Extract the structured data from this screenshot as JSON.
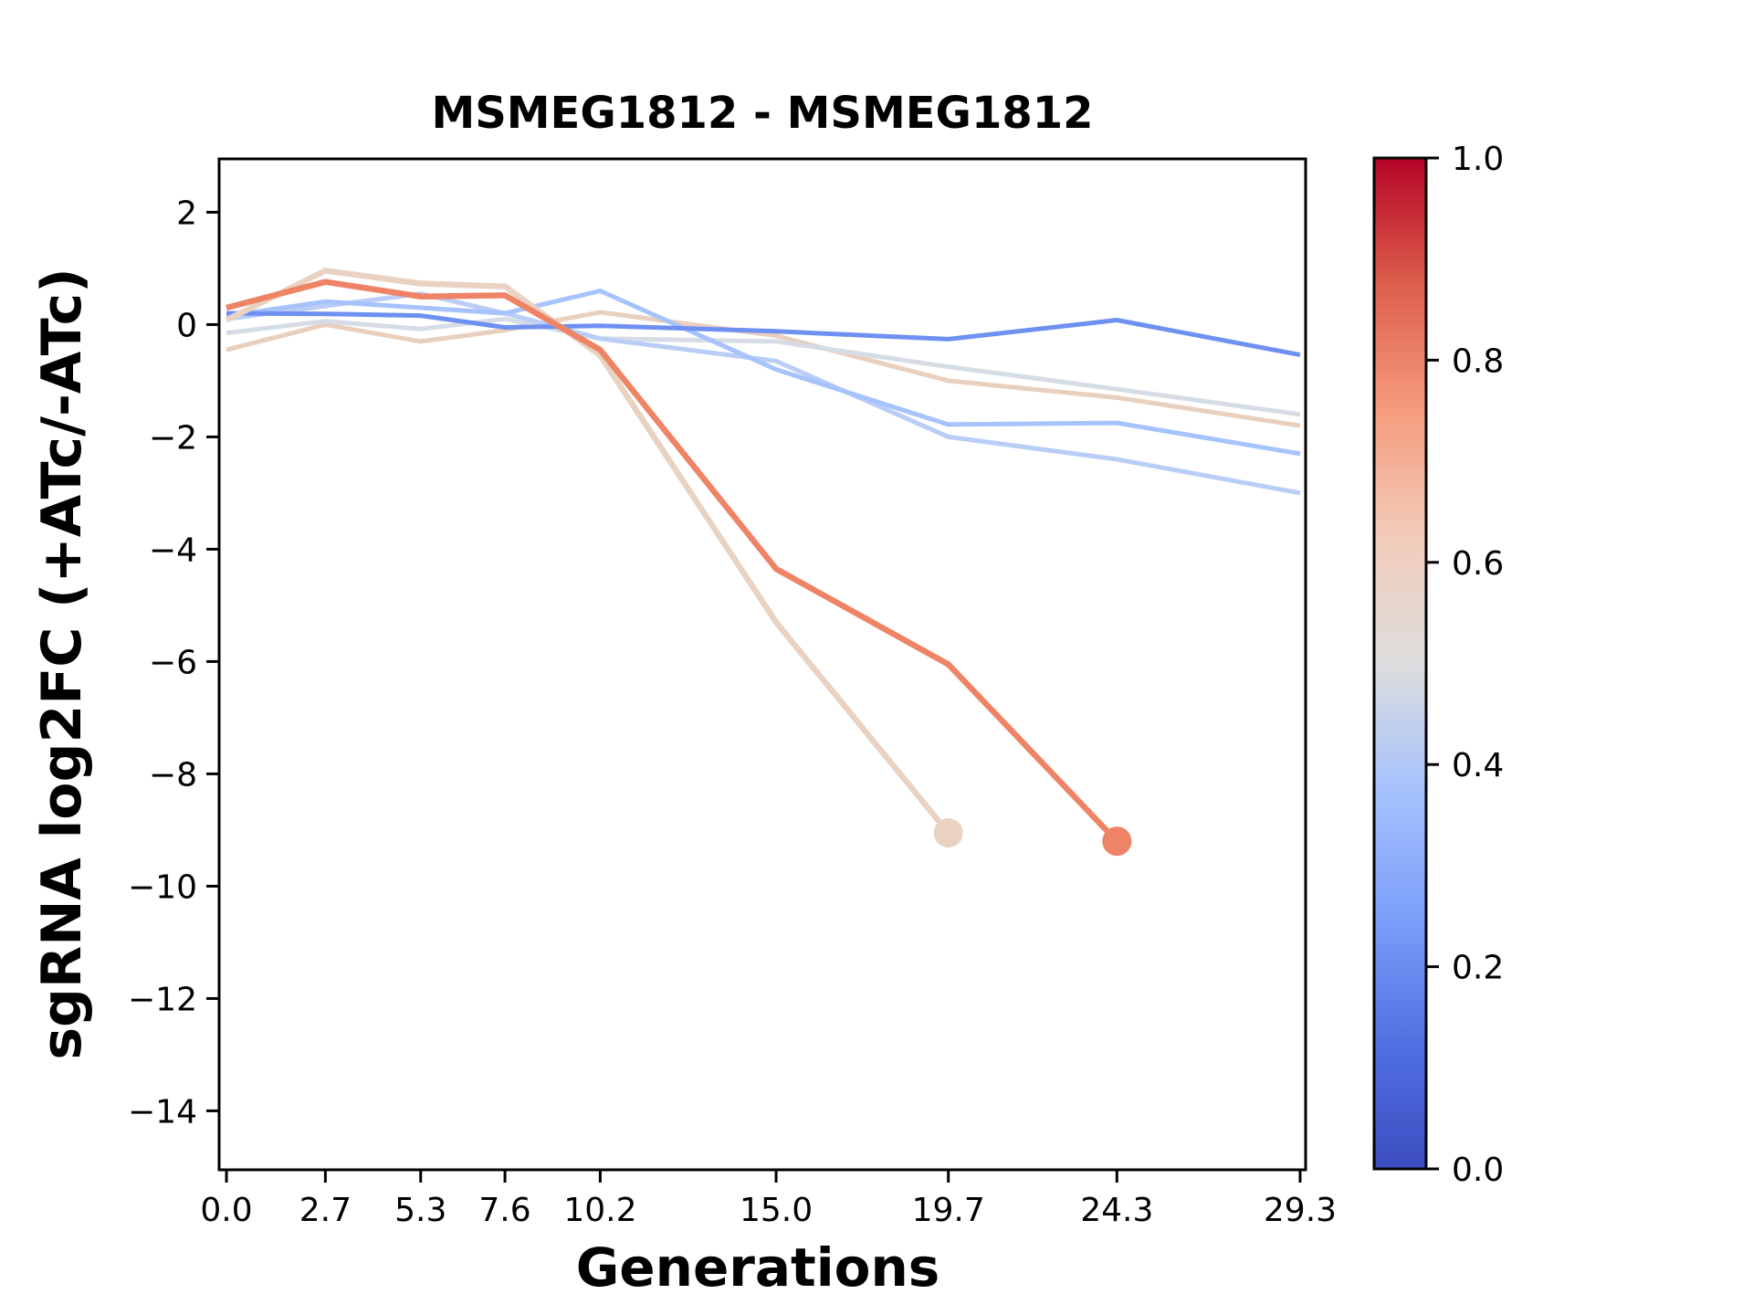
{
  "title": "MSMEG1812 - MSMEG1812",
  "axes": {
    "xlabel": "Generations",
    "ylabel": "sgRNA log2FC (+ATc/-ATc)"
  },
  "chart_data": {
    "type": "line",
    "title": "MSMEG1812 - MSMEG1812",
    "xlabel": "Generations",
    "ylabel": "sgRNA log2FC (+ATc/-ATc)",
    "x": [
      0.0,
      2.7,
      5.3,
      7.6,
      10.2,
      15.0,
      19.7,
      24.3,
      29.3
    ],
    "x_tick_labels": [
      "0.0",
      "2.7",
      "5.3",
      "7.6",
      "10.2",
      "15.0",
      "19.7",
      "24.3",
      "29.3"
    ],
    "y_tick_values": [
      2,
      0,
      -2,
      -4,
      -6,
      -8,
      -10,
      -12,
      -14
    ],
    "y_tick_labels": [
      "2",
      "0",
      "−2",
      "−4",
      "−6",
      "−8",
      "−10",
      "−12",
      "−14"
    ],
    "xlim": [
      -0.2,
      29.45
    ],
    "ylim": [
      -15.05,
      2.95
    ],
    "grid": false,
    "legend": false,
    "series": [
      {
        "id": "line-3",
        "color": "#e9cfbd",
        "color_value_est": 0.6,
        "values": [
          -0.45,
          0.0,
          -0.3,
          -0.1,
          0.22,
          -0.2,
          -1.0,
          -1.3,
          -1.8
        ],
        "end_dot": false
      },
      {
        "id": "line-4",
        "color": "#d6dce6",
        "color_value_est": 0.5,
        "values": [
          -0.15,
          0.06,
          -0.08,
          0.1,
          -0.25,
          -0.3,
          -0.75,
          -1.15,
          -1.6
        ],
        "end_dot": false
      },
      {
        "id": "line-7",
        "color": "#b9cdf6",
        "color_value_est": 0.44,
        "values": [
          0.1,
          0.33,
          0.55,
          0.2,
          -0.25,
          -0.65,
          -2.0,
          -2.4,
          -3.0
        ],
        "end_dot": false
      },
      {
        "id": "line-6",
        "color": "#a6c3fe",
        "color_value_est": 0.4,
        "values": [
          0.15,
          0.41,
          0.3,
          0.2,
          0.6,
          -0.8,
          -1.78,
          -1.75,
          -2.3
        ],
        "end_dot": false
      },
      {
        "id": "line-5",
        "color": "#6e90f1",
        "color_value_est": 0.25,
        "values": [
          0.2,
          0.19,
          0.16,
          -0.05,
          -0.02,
          -0.12,
          -0.26,
          0.08,
          -0.54
        ],
        "end_dot": false
      },
      {
        "id": "line-2",
        "color": "#e9d2c2",
        "color_value_est": 0.6,
        "values": [
          0.08,
          0.96,
          0.73,
          0.68,
          -0.55,
          -5.3,
          -9.05,
          null,
          null
        ],
        "end_dot": true
      },
      {
        "id": "line-1",
        "color": "#ee8365",
        "color_value_est": 0.8,
        "values": [
          0.3,
          0.76,
          0.5,
          0.52,
          -0.45,
          -4.35,
          -6.05,
          -9.2,
          null
        ],
        "end_dot": true
      }
    ],
    "colorbar": {
      "tick_values": [
        0.0,
        0.2,
        0.4,
        0.6,
        0.8,
        1.0
      ],
      "tick_labels": [
        "0.0",
        "0.2",
        "0.4",
        "0.6",
        "0.8",
        "1.0"
      ],
      "gradient_stops": [
        [
          0.0,
          "#3b4cc0"
        ],
        [
          0.125,
          "#5171e2"
        ],
        [
          0.25,
          "#7c9ff9"
        ],
        [
          0.375,
          "#a6c2fd"
        ],
        [
          0.5,
          "#dddddd"
        ],
        [
          0.625,
          "#f2ccba"
        ],
        [
          0.75,
          "#f59c7d"
        ],
        [
          0.875,
          "#dd5f4c"
        ],
        [
          1.0,
          "#b40426"
        ]
      ]
    }
  }
}
